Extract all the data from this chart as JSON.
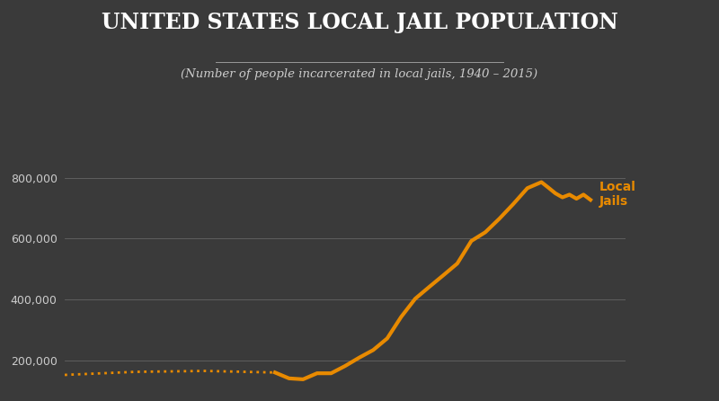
{
  "title": "UNITED STATES LOCAL JAIL POPULATION",
  "subtitle": "(Number of people incarcerated in local jails, 1940 – 2015)",
  "title_color": "#ffffff",
  "subtitle_color": "#cccccc",
  "bg_color": "#3a3a3a",
  "ax_bg_color": "#3a3a3a",
  "line_color": "#e88a00",
  "grid_color": "#888888",
  "label_color": "#cccccc",
  "label_fontsize": 9,
  "line_label": "Local\nJails",
  "line_label_color": "#e88a00",
  "years_solid": [
    1970,
    1972,
    1974,
    1976,
    1978,
    1980,
    1982,
    1984,
    1986,
    1988,
    1990,
    1992,
    1994,
    1996,
    1998,
    2000,
    2002,
    2004,
    2006,
    2008,
    2009,
    2010,
    2011,
    2012,
    2013,
    2014,
    2015
  ],
  "values_solid": [
    160863,
    141588,
    138557,
    158394,
    158394,
    182288,
    209582,
    234500,
    272736,
    343569,
    403019,
    441781,
    479800,
    518492,
    592462,
    621149,
    665475,
    713990,
    765819,
    785533,
    767434,
    748728,
    735601,
    744524,
    731208,
    744592,
    727400
  ],
  "years_dotted": [
    1940,
    1950,
    1960,
    1970
  ],
  "values_dotted": [
    153000,
    163000,
    166000,
    160863
  ],
  "xlim": [
    1940,
    2020
  ],
  "ylim": [
    120000,
    870000
  ],
  "yticks": [
    200000,
    400000,
    600000,
    800000
  ],
  "title_fontsize": 17,
  "subtitle_fontsize": 9.5
}
